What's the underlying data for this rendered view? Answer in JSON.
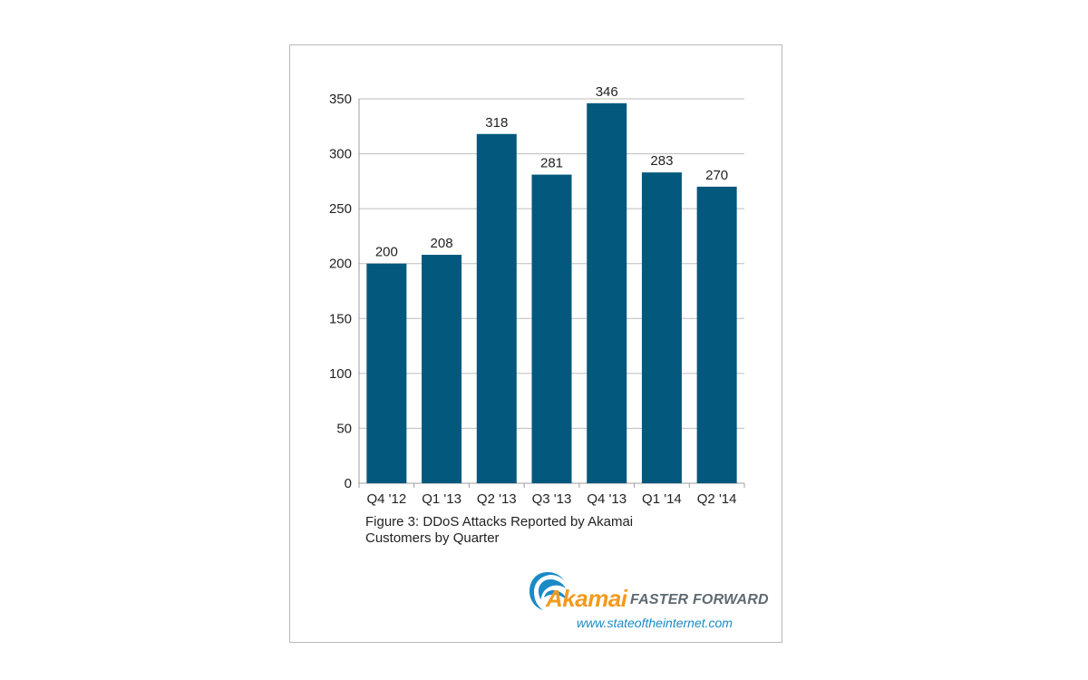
{
  "chart_data": {
    "type": "bar",
    "categories": [
      "Q4 '12",
      "Q1 '13",
      "Q2 '13",
      "Q3 '13",
      "Q4 '13",
      "Q1 '14",
      "Q2 '14"
    ],
    "values": [
      200,
      208,
      318,
      281,
      346,
      283,
      270
    ],
    "ylim": [
      0,
      350
    ],
    "yticks": [
      0,
      50,
      100,
      150,
      200,
      250,
      300,
      350
    ],
    "grid": true,
    "bar_color": "#03587d"
  },
  "caption": {
    "line1": "Figure 3: DDoS Attacks Reported by Akamai",
    "line2": "Customers by Quarter"
  },
  "brand": {
    "name": "Akamai",
    "tagline": "FASTER FORWARD",
    "url": "www.stateoftheinternet.com",
    "logo_icon": "akamai-wave-icon",
    "orange": "#f39a1e",
    "blue": "#1a8ac6"
  }
}
